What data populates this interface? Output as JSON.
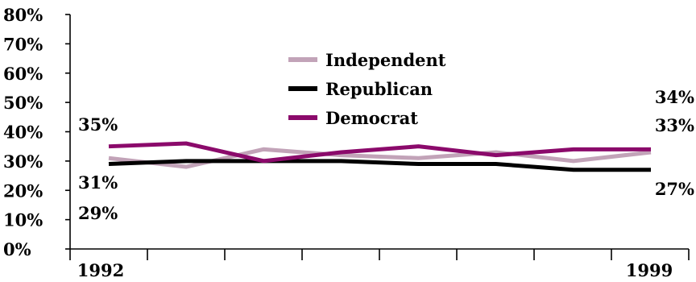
{
  "chart_data": {
    "type": "line",
    "x": [
      1992,
      1993,
      1994,
      1995,
      1996,
      1997,
      1998,
      1999
    ],
    "x_tick_labels": [
      "1992",
      "",
      "",
      "",
      "",
      "",
      "",
      "1999"
    ],
    "y_tick_labels": [
      "0%",
      "10%",
      "20%",
      "30%",
      "40%",
      "50%",
      "60%",
      "70%",
      "80%"
    ],
    "ylim": [
      0,
      80
    ],
    "grid": false,
    "legend_position": "center-top",
    "series": [
      {
        "name": "Independent",
        "color": "#c2a3b8",
        "values": [
          31,
          28,
          34,
          32,
          31,
          33,
          30,
          33
        ]
      },
      {
        "name": "Republican",
        "color": "#000000",
        "values": [
          29,
          30,
          30,
          30,
          29,
          29,
          27,
          27
        ]
      },
      {
        "name": "Democrat",
        "color": "#8b0a6b",
        "values": [
          35,
          36,
          30,
          33,
          35,
          32,
          34,
          34
        ]
      }
    ],
    "annotations": {
      "democrat_start": "35%",
      "independent_start": "31%",
      "republican_start": "29%",
      "democrat_end": "34%",
      "independent_end": "33%",
      "republican_end": "27%"
    }
  }
}
